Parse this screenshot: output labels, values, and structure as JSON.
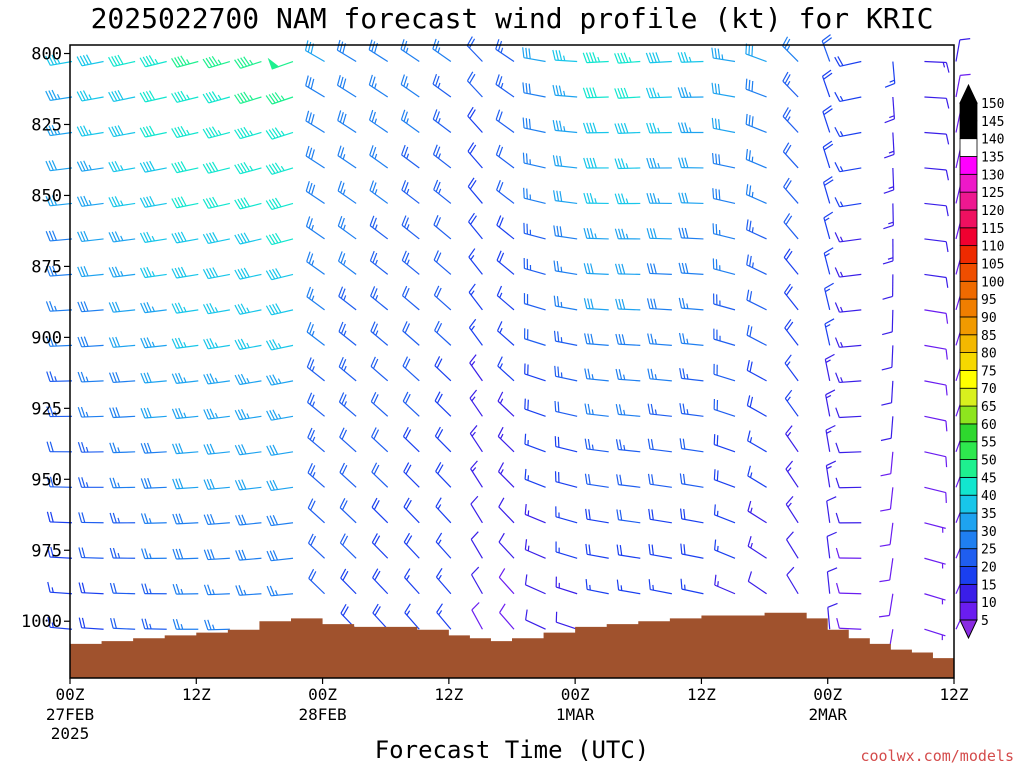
{
  "title": "2025022700 NAM forecast wind profile (kt) for KRIC",
  "xlabel": "Forecast Time (UTC)",
  "credit": "coolwx.com/models",
  "colors": {
    "terrain": "#a0522d",
    "colorbar": [
      "#8a2be2",
      "#6a1df0",
      "#3a1ee8",
      "#1a3ff0",
      "#1f5ef0",
      "#1f7ff0",
      "#1ea3f0",
      "#18c6ea",
      "#12e6cf",
      "#1ef08f",
      "#2ee84e",
      "#2ed82e",
      "#8ee51e",
      "#d9f01e",
      "#ffff00",
      "#f6d800",
      "#f3b800",
      "#f19a00",
      "#f07e00",
      "#ef6a00",
      "#ef4e00",
      "#ee2a00",
      "#f00030",
      "#ef1060",
      "#ee1890",
      "#ee18c8",
      "#ff00ff",
      "#ffffff"
    ]
  },
  "chart_data": {
    "type": "wind_barbs",
    "title": "2025022700 NAM forecast wind profile (kt) for KRIC",
    "xlabel": "Forecast Time (UTC)",
    "ylabel": "",
    "x_range_hours": [
      0,
      84
    ],
    "x_ticks": [
      {
        "hour": 0,
        "label": "00Z",
        "sub": [
          "27FEB",
          "2025"
        ]
      },
      {
        "hour": 12,
        "label": "12Z",
        "sub": []
      },
      {
        "hour": 24,
        "label": "00Z",
        "sub": [
          "28FEB"
        ]
      },
      {
        "hour": 36,
        "label": "12Z",
        "sub": []
      },
      {
        "hour": 48,
        "label": "00Z",
        "sub": [
          "1MAR"
        ]
      },
      {
        "hour": 60,
        "label": "12Z",
        "sub": []
      },
      {
        "hour": 72,
        "label": "00Z",
        "sub": [
          "2MAR"
        ]
      },
      {
        "hour": 84,
        "label": "12Z",
        "sub": []
      }
    ],
    "y_ticks": [
      800,
      825,
      850,
      875,
      900,
      925,
      950,
      975,
      1000
    ],
    "y_range_hpa": [
      797,
      1020
    ],
    "colorbar": {
      "levels": [
        "5",
        "10",
        "15",
        "20",
        "25",
        "30",
        "35",
        "40",
        "45",
        "50",
        "55",
        "60",
        "65",
        "70",
        "75",
        "80",
        "85",
        "90",
        "95",
        "100",
        "105",
        "110",
        "115",
        "120",
        "125",
        "130",
        "135",
        "140",
        "145",
        "150"
      ],
      "units": "kt"
    },
    "surface_pressure_hpa": [
      {
        "hour": 0,
        "p": 1008
      },
      {
        "hour": 3,
        "p": 1007
      },
      {
        "hour": 6,
        "p": 1006
      },
      {
        "hour": 9,
        "p": 1005
      },
      {
        "hour": 12,
        "p": 1004
      },
      {
        "hour": 15,
        "p": 1003
      },
      {
        "hour": 18,
        "p": 1000
      },
      {
        "hour": 21,
        "p": 999
      },
      {
        "hour": 24,
        "p": 1001
      },
      {
        "hour": 27,
        "p": 1002
      },
      {
        "hour": 30,
        "p": 1002
      },
      {
        "hour": 33,
        "p": 1003
      },
      {
        "hour": 36,
        "p": 1005
      },
      {
        "hour": 38,
        "p": 1006
      },
      {
        "hour": 40,
        "p": 1007
      },
      {
        "hour": 42,
        "p": 1006
      },
      {
        "hour": 45,
        "p": 1004
      },
      {
        "hour": 48,
        "p": 1002
      },
      {
        "hour": 51,
        "p": 1001
      },
      {
        "hour": 54,
        "p": 1000
      },
      {
        "hour": 57,
        "p": 999
      },
      {
        "hour": 60,
        "p": 998
      },
      {
        "hour": 63,
        "p": 998
      },
      {
        "hour": 66,
        "p": 997
      },
      {
        "hour": 69,
        "p": 997
      },
      {
        "hour": 70,
        "p": 999
      },
      {
        "hour": 72,
        "p": 1003
      },
      {
        "hour": 74,
        "p": 1006
      },
      {
        "hour": 76,
        "p": 1008
      },
      {
        "hour": 78,
        "p": 1010
      },
      {
        "hour": 80,
        "p": 1011
      },
      {
        "hour": 82,
        "p": 1013
      },
      {
        "hour": 84,
        "p": 1014
      }
    ],
    "wind_profile_keyframes": [
      {
        "hour": 0,
        "dir": 260,
        "upper_kt": 35,
        "lower_kt": 15
      },
      {
        "hour": 12,
        "dir": 255,
        "upper_kt": 45,
        "lower_kt": 25
      },
      {
        "hour": 22,
        "dir": 250,
        "upper_kt": 48,
        "lower_kt": 25
      },
      {
        "hour": 24,
        "dir": 300,
        "upper_kt": 30,
        "lower_kt": 20
      },
      {
        "hour": 36,
        "dir": 305,
        "upper_kt": 25,
        "lower_kt": 15
      },
      {
        "hour": 40,
        "dir": 320,
        "upper_kt": 20,
        "lower_kt": 8
      },
      {
        "hour": 45,
        "dir": 280,
        "upper_kt": 30,
        "lower_kt": 10
      },
      {
        "hour": 52,
        "dir": 265,
        "upper_kt": 45,
        "lower_kt": 15
      },
      {
        "hour": 60,
        "dir": 268,
        "upper_kt": 35,
        "lower_kt": 15
      },
      {
        "hour": 66,
        "dir": 290,
        "upper_kt": 30,
        "lower_kt": 10
      },
      {
        "hour": 72,
        "dir": 340,
        "upper_kt": 20,
        "lower_kt": 10
      },
      {
        "hour": 84,
        "dir": 10,
        "upper_kt": 10,
        "lower_kt": 5
      }
    ]
  }
}
